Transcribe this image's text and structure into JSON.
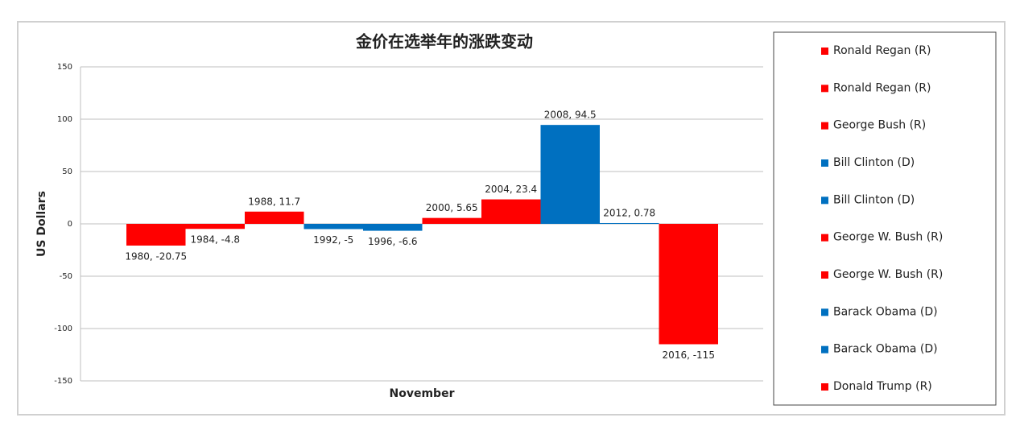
{
  "chart_data": {
    "type": "bar",
    "title": "金价在选举年的涨跌变动",
    "x_label": "November",
    "y_label": "US Dollars",
    "ylim": [
      -150,
      150
    ],
    "yticks": [
      150,
      100,
      50,
      0,
      -50,
      -100,
      -150
    ],
    "grid": true,
    "legend": "right",
    "series": [
      {
        "name": "Ronald Regan (R)",
        "color": "#ff0000",
        "values": [
          -20.75
        ],
        "value_labels": [
          "1980, -20.75"
        ]
      },
      {
        "name": "Ronald Regan (R)",
        "color": "#ff0000",
        "values": [
          -4.8
        ],
        "value_labels": [
          "1984, -4.8"
        ]
      },
      {
        "name": "George Bush (R)",
        "color": "#ff0000",
        "values": [
          11.7
        ],
        "value_labels": [
          "1988, 11.7"
        ]
      },
      {
        "name": "Bill Clinton (D)",
        "color": "#0070c0",
        "values": [
          -5
        ],
        "value_labels": [
          "1992, -5"
        ]
      },
      {
        "name": "Bill Clinton (D)",
        "color": "#0070c0",
        "values": [
          -6.6
        ],
        "value_labels": [
          "1996, -6.6"
        ]
      },
      {
        "name": "George W. Bush (R)",
        "color": "#ff0000",
        "values": [
          5.65
        ],
        "value_labels": [
          "2000, 5.65"
        ]
      },
      {
        "name": "George W. Bush (R)",
        "color": "#ff0000",
        "values": [
          23.4
        ],
        "value_labels": [
          "2004, 23.4"
        ]
      },
      {
        "name": "Barack Obama (D)",
        "color": "#0070c0",
        "values": [
          94.5
        ],
        "value_labels": [
          "2008, 94.5"
        ]
      },
      {
        "name": "Barack Obama (D)",
        "color": "#0070c0",
        "values": [
          0.78
        ],
        "value_labels": [
          "2012, 0.78"
        ]
      },
      {
        "name": "Donald Trump (R)",
        "color": "#ff0000",
        "values": [
          -115
        ],
        "value_labels": [
          "2016, -115"
        ]
      }
    ]
  }
}
